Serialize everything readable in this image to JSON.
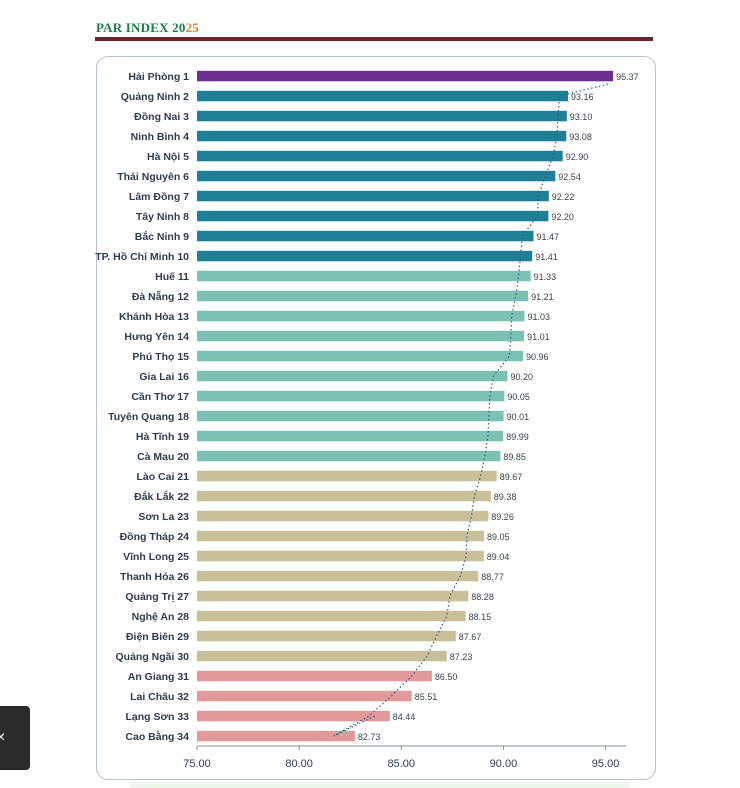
{
  "header": {
    "title_main": "PAR INDEX 20",
    "title_accent": "25"
  },
  "side_tab": {
    "glyph": "×"
  },
  "colors": {
    "rank1": "#6b2f8f",
    "rank2_10": "#1f7f96",
    "rank11_20": "#7cc2b2",
    "rank21_30": "#c9bf98",
    "rank31_34": "#e1999a",
    "header_rule": "#6b2330",
    "trend_line": "#2a5c8f"
  },
  "chart_data": {
    "type": "bar",
    "orientation": "horizontal",
    "categories": [
      "Hải Phòng  1",
      "Quảng Ninh  2",
      "Đồng Nai  3",
      "Ninh Bình  4",
      "Hà Nội  5",
      "Thái Nguyên  6",
      "Lâm Đồng  7",
      "Tây Ninh  8",
      "Bắc Ninh  9",
      "TP. Hồ Chí Minh 10",
      "Huế 11",
      "Đà Nẵng 12",
      "Khánh Hòa 13",
      "Hưng Yên 14",
      "Phú Thọ 15",
      "Gia Lai 16",
      "Cần Thơ 17",
      "Tuyên Quang 18",
      "Hà Tĩnh 19",
      "Cà Mau 20",
      "Lào Cai 21",
      "Đắk Lắk 22",
      "Sơn La 23",
      "Đồng Tháp 24",
      "Vĩnh Long 25",
      "Thanh Hóa 26",
      "Quảng Trị 27",
      "Nghệ An 28",
      "Điện Biên 29",
      "Quảng Ngãi 30",
      "An Giang 31",
      "Lai Châu 32",
      "Lạng Sơn 33",
      "Cao Bằng 34"
    ],
    "values": [
      95.37,
      93.16,
      93.1,
      93.08,
      92.9,
      92.54,
      92.22,
      92.2,
      91.47,
      91.41,
      91.33,
      91.21,
      91.03,
      91.01,
      90.96,
      90.2,
      90.05,
      90.01,
      89.99,
      89.85,
      89.67,
      89.38,
      89.26,
      89.05,
      89.04,
      88.77,
      88.28,
      88.15,
      87.67,
      87.23,
      86.5,
      85.51,
      84.44,
      82.73
    ],
    "value_labels": [
      "95.37",
      "93.16",
      "93.10",
      "93.08",
      "92.90",
      "92.54",
      "92.22",
      "92.20",
      "91.47",
      "91.41",
      "91.33",
      "91.21",
      "91.03",
      "91.01",
      "90.96",
      "90.20",
      "90.05",
      "90.01",
      "89.99",
      "89.85",
      "89.67",
      "89.38",
      "89.26",
      "89.05",
      "89.04",
      "88.77",
      "88.28",
      "88.15",
      "87.67",
      "87.23",
      "86.50",
      "85.51",
      "84.44",
      "82.73"
    ],
    "groups": [
      "rank1",
      "rank2_10",
      "rank2_10",
      "rank2_10",
      "rank2_10",
      "rank2_10",
      "rank2_10",
      "rank2_10",
      "rank2_10",
      "rank2_10",
      "rank11_20",
      "rank11_20",
      "rank11_20",
      "rank11_20",
      "rank11_20",
      "rank11_20",
      "rank11_20",
      "rank11_20",
      "rank11_20",
      "rank11_20",
      "rank21_30",
      "rank21_30",
      "rank21_30",
      "rank21_30",
      "rank21_30",
      "rank21_30",
      "rank21_30",
      "rank21_30",
      "rank21_30",
      "rank21_30",
      "rank31_34",
      "rank31_34",
      "rank31_34",
      "rank31_34"
    ],
    "xlim": [
      75,
      96
    ],
    "xticks": [
      75,
      80,
      85,
      90,
      95
    ],
    "xtick_labels": [
      "75.00",
      "80.00",
      "85.00",
      "90.00",
      "95.00"
    ],
    "title": "",
    "xlabel": "",
    "ylabel": "",
    "grid": false,
    "legend": "none",
    "trend_line": "dotted"
  }
}
